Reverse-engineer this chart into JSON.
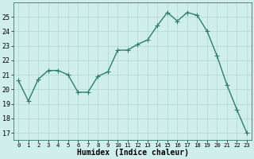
{
  "x": [
    0,
    1,
    2,
    3,
    4,
    5,
    6,
    7,
    8,
    9,
    10,
    11,
    12,
    13,
    14,
    15,
    16,
    17,
    18,
    19,
    20,
    21,
    22,
    23
  ],
  "y": [
    20.6,
    19.2,
    20.7,
    21.3,
    21.3,
    21.0,
    19.8,
    19.8,
    20.9,
    21.2,
    22.7,
    22.7,
    23.1,
    23.4,
    24.4,
    25.3,
    24.7,
    25.3,
    25.1,
    24.0,
    22.3,
    20.3,
    18.6,
    17.0
  ],
  "line_color": "#2e7d6e",
  "marker_color": "#2e7d6e",
  "bg_color": "#d0eeec",
  "grid_color": "#b0d8d3",
  "xlabel": "Humidex (Indice chaleur)",
  "xlim": [
    -0.5,
    23.5
  ],
  "ylim": [
    16.5,
    26.0
  ],
  "yticks": [
    17,
    18,
    19,
    20,
    21,
    22,
    23,
    24,
    25
  ],
  "xticks": [
    0,
    1,
    2,
    3,
    4,
    5,
    6,
    7,
    8,
    9,
    10,
    11,
    12,
    13,
    14,
    15,
    16,
    17,
    18,
    19,
    20,
    21,
    22,
    23
  ],
  "xlabel_fontsize": 7,
  "ytick_fontsize": 6,
  "xtick_fontsize": 5.2,
  "linewidth": 1.0,
  "markersize": 2.0
}
